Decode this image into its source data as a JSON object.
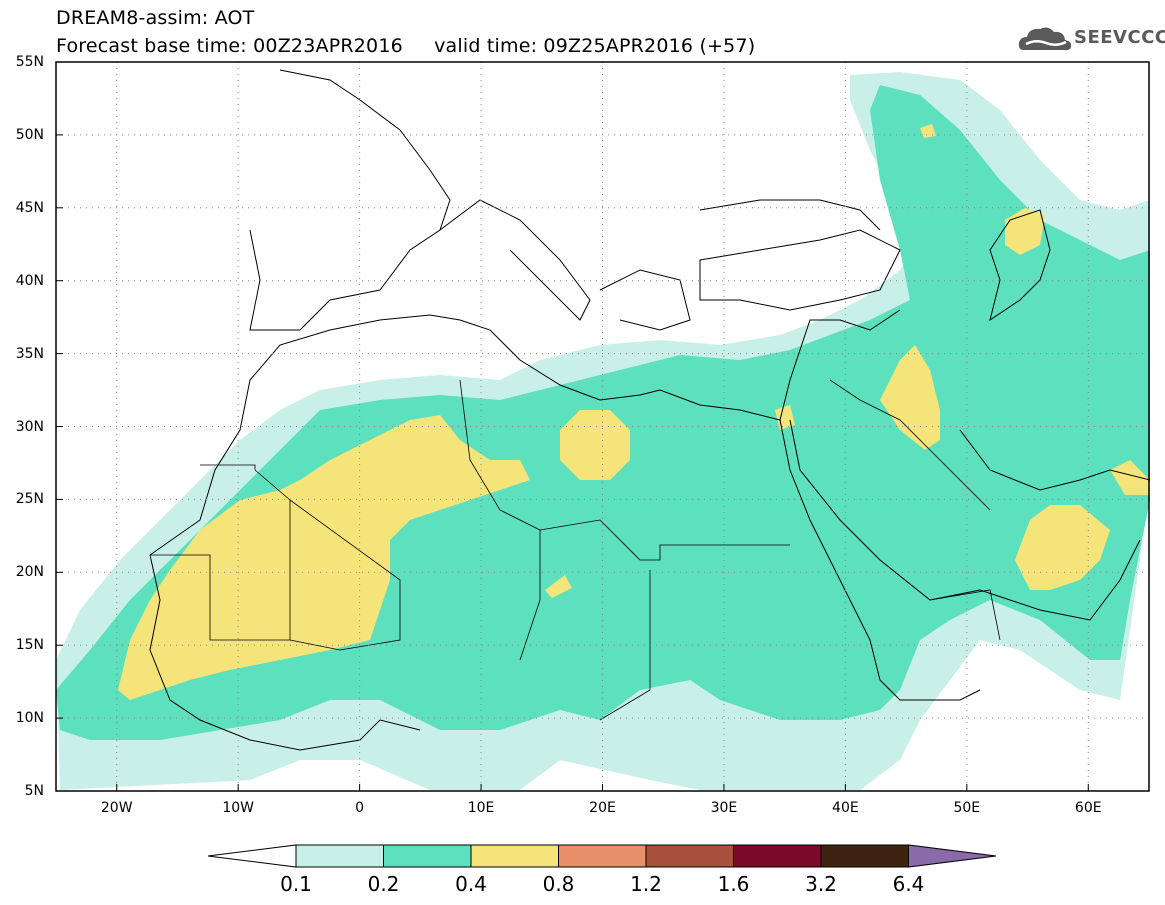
{
  "header": {
    "title_line1": "DREAM8-assim: AOT",
    "title_line2": "Forecast base time: 00Z23APR2016     valid time: 09Z25APR2016 (+57)",
    "logo_text": "SEEVCCC"
  },
  "map": {
    "lon_labels": [
      "20W",
      "10W",
      "0",
      "10E",
      "20E",
      "30E",
      "40E",
      "50E",
      "60E"
    ],
    "lat_labels": [
      "55N",
      "50N",
      "45N",
      "40N",
      "35N",
      "30N",
      "25N",
      "20N",
      "15N",
      "10N",
      "5N"
    ],
    "lon_range": [
      -25,
      65
    ],
    "lat_range": [
      5,
      55
    ]
  },
  "colorbar": {
    "labels": [
      "0.1",
      "0.2",
      "0.4",
      "0.8",
      "1.2",
      "1.6",
      "3.2",
      "6.4"
    ],
    "colors": [
      "#ffffff",
      "#c8f0e8",
      "#5ce0bd",
      "#f5e47a",
      "#e8906a",
      "#a8503c",
      "#7a0a28",
      "#3e2410",
      "#8a6aa8"
    ]
  }
}
